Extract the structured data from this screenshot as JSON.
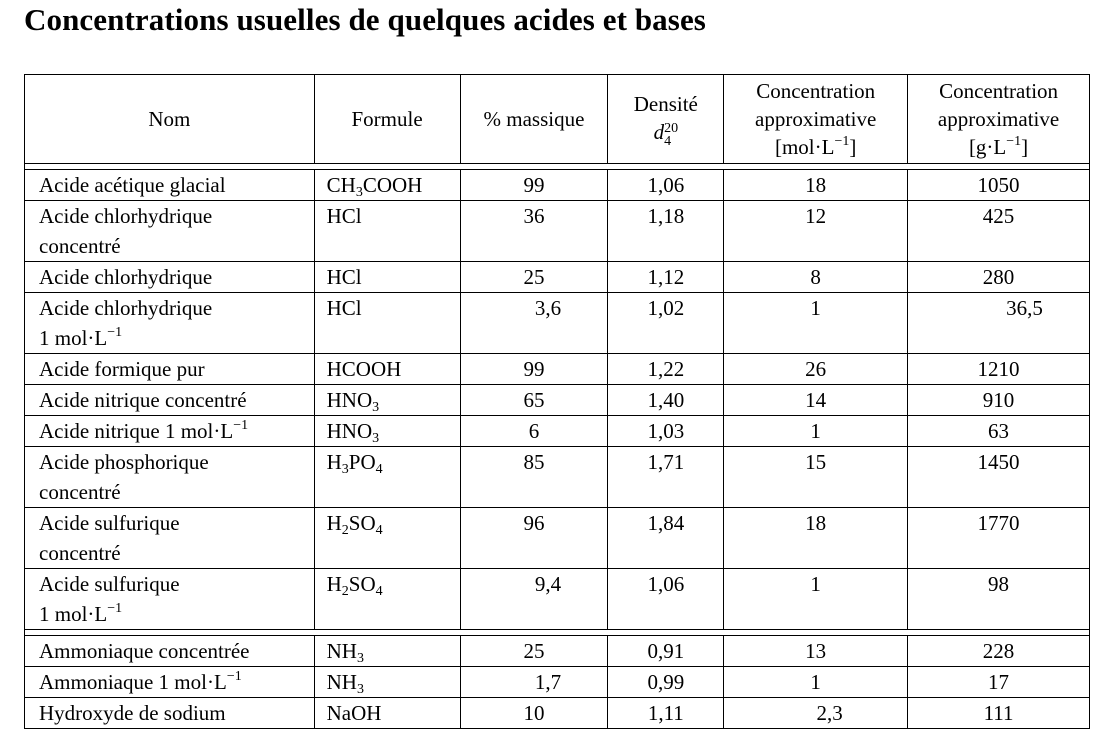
{
  "title": "Concentrations usuelles de quelques acides et bases",
  "headers": {
    "nom": "Nom",
    "formule": "Formule",
    "massique": "% massique",
    "densite": "Densité",
    "densite_symbol": "d",
    "densite_sup": "20",
    "densite_sub": "4",
    "conc_mol_line1": "Concentration",
    "conc_mol_line2": "approximative",
    "conc_mol_unit": "[mol·L",
    "conc_mol_exp": "−1",
    "conc_mol_close": "]",
    "conc_g_line1": "Concentration",
    "conc_g_line2": "approximative",
    "conc_g_unit": "[g·L",
    "conc_g_exp": "−1",
    "conc_g_close": "]"
  },
  "acids": [
    {
      "nom1": "Acide acétique glacial",
      "f_a": "CH",
      "f_s1": "3",
      "f_b": "COOH",
      "f_s2": "",
      "massique": "99",
      "densite": "1,06",
      "mol": "18",
      "g": "1050"
    },
    {
      "nom1": "Acide chlorhydrique",
      "nom2": "concentré",
      "f_a": "HCl",
      "massique": "36",
      "densite": "1,18",
      "mol": "12",
      "g": "425"
    },
    {
      "nom1": "Acide chlorhydrique",
      "f_a": "HCl",
      "massique": "25",
      "densite": "1,12",
      "mol": "8",
      "g": "280"
    },
    {
      "nom1": "Acide chlorhydrique",
      "nom2": "1 mol·L",
      "nom2_exp": "−1",
      "f_a": "HCl",
      "massique": "3,6",
      "densite": "1,02",
      "mol": "1",
      "g": "36,5"
    },
    {
      "nom1": "Acide formique pur",
      "f_a": "HCOOH",
      "massique": "99",
      "densite": "1,22",
      "mol": "26",
      "g": "1210"
    },
    {
      "nom1": "Acide nitrique concentré",
      "f_a": "HNO",
      "f_s1": "3",
      "massique": "65",
      "densite": "1,40",
      "mol": "14",
      "g": "910"
    },
    {
      "nom1": "Acide nitrique 1 mol·L",
      "nom1_exp": "−1",
      "f_a": "HNO",
      "f_s1": "3",
      "massique": "6",
      "densite": "1,03",
      "mol": "1",
      "g": "63"
    },
    {
      "nom1": "Acide phosphorique",
      "nom2": "concentré",
      "f_a": "H",
      "f_s1": "3",
      "f_b": "PO",
      "f_s2": "4",
      "massique": "85",
      "densite": "1,71",
      "mol": "15",
      "g": "1450"
    },
    {
      "nom1": "Acide sulfurique",
      "nom2": "concentré",
      "f_a": "H",
      "f_s1": "2",
      "f_b": "SO",
      "f_s2": "4",
      "massique": "96",
      "densite": "1,84",
      "mol": "18",
      "g": "1770"
    },
    {
      "nom1": "Acide sulfurique",
      "nom2": "1 mol·L",
      "nom2_exp": "−1",
      "f_a": "H",
      "f_s1": "2",
      "f_b": "SO",
      "f_s2": "4",
      "massique": "9,4",
      "densite": "1,06",
      "mol": "1",
      "g": "98"
    }
  ],
  "bases": [
    {
      "nom1": "Ammoniaque concentrée",
      "f_a": "NH",
      "f_s1": "3",
      "massique": "25",
      "densite": "0,91",
      "mol": "13",
      "g": "228"
    },
    {
      "nom1": "Ammoniaque 1 mol·L",
      "nom1_exp": "−1",
      "f_a": "NH",
      "f_s1": "3",
      "massique": "1,7",
      "densite": "0,99",
      "mol": "1",
      "g": "17"
    },
    {
      "nom1": "Hydroxyde de sodium",
      "f_a": "NaOH",
      "massique": "10",
      "densite": "1,11",
      "mol": "2,3",
      "g": "111"
    }
  ]
}
